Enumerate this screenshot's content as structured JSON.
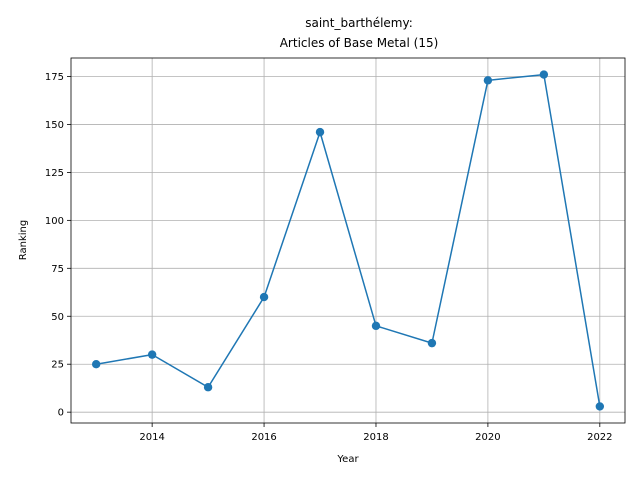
{
  "chart_data": {
    "type": "line",
    "title_line1": "saint_barthélemy:",
    "title_line2": "Articles of Base Metal (15)",
    "xlabel": "Year",
    "ylabel": "Ranking",
    "x": [
      2013,
      2014,
      2015,
      2016,
      2017,
      2018,
      2019,
      2020,
      2021,
      2022
    ],
    "values": [
      25,
      30,
      13,
      60,
      146,
      45,
      36,
      173,
      176,
      3
    ],
    "xlim": [
      2012.55,
      2022.45
    ],
    "ylim": [
      -5.65,
      184.65
    ],
    "xticks": [
      2014,
      2016,
      2018,
      2020,
      2022
    ],
    "yticks": [
      0,
      25,
      50,
      75,
      100,
      125,
      150,
      175
    ],
    "grid": true,
    "line_color": "#1f77b4",
    "marker": "circle"
  }
}
